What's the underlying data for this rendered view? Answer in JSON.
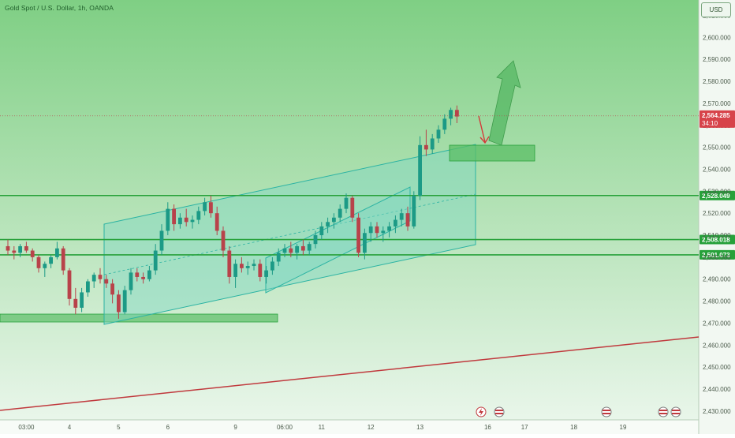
{
  "header": {
    "title": "Gold Spot / U.S. Dollar, 1h, OANDA",
    "currency_label": "USD"
  },
  "colors": {
    "background_top": "#7fcf84",
    "background_bottom": "#e9f6ea",
    "up_candle": "#1c9a86",
    "down_candle": "#b8424a",
    "channel_fill": "#7fd8c4",
    "channel_line": "#2bb3a3",
    "level_line": "#27a13a",
    "zone_fill": "#5bbd66",
    "trendline": "#c0393d",
    "forecast_arrow": "#5dbb6a",
    "pullback_arrow": "#d43a3a",
    "price_label_bg": "#27a13a",
    "last_price_bg": "#d7434a"
  },
  "chart_data": {
    "type": "candlestick",
    "title": "Gold Spot / U.S. Dollar, 1h, OANDA",
    "ylim": [
      2426,
      2617
    ],
    "y_ticks": [
      "2,430.000",
      "2,440.000",
      "2,450.000",
      "2,460.000",
      "2,470.000",
      "2,480.000",
      "2,490.000",
      "2,500.000",
      "2,510.000",
      "2,520.000",
      "2,530.000",
      "2,540.000",
      "2,550.000",
      "2,560.000",
      "2,570.000",
      "2,580.000",
      "2,590.000",
      "2,600.000",
      "2,610.000"
    ],
    "y_tick_values": [
      2430,
      2440,
      2450,
      2460,
      2470,
      2480,
      2490,
      2500,
      2510,
      2520,
      2530,
      2540,
      2550,
      2560,
      2570,
      2580,
      2590,
      2600,
      2610
    ],
    "x_ticks": [
      "03:00",
      "4",
      "5",
      "6",
      "9",
      "06:00",
      "11",
      "12",
      "13",
      "16",
      "17",
      "18",
      "19"
    ],
    "x_tick_bar_index": [
      3,
      10,
      18,
      26,
      37,
      45,
      51,
      59,
      67,
      78,
      84,
      92,
      100
    ],
    "price_levels": [
      {
        "label": "2,528.049",
        "value": 2528.049
      },
      {
        "label": "2,508.018",
        "value": 2508.018
      },
      {
        "label": "2,501.073",
        "value": 2501.073
      }
    ],
    "last_price": {
      "label": "2,564.285",
      "value": 2564.285,
      "countdown": "34:10"
    },
    "candles": [
      [
        2505,
        2508,
        2501,
        2503
      ],
      [
        2503,
        2505,
        2499,
        2502
      ],
      [
        2502,
        2506,
        2500,
        2505
      ],
      [
        2505,
        2507,
        2502,
        2503
      ],
      [
        2503,
        2504,
        2498,
        2500
      ],
      [
        2500,
        2501,
        2493,
        2495
      ],
      [
        2495,
        2498,
        2491,
        2497
      ],
      [
        2497,
        2501,
        2495,
        2500
      ],
      [
        2500,
        2507,
        2499,
        2504
      ],
      [
        2504,
        2505,
        2492,
        2494
      ],
      [
        2494,
        2495,
        2478,
        2481
      ],
      [
        2481,
        2486,
        2474,
        2477
      ],
      [
        2477,
        2486,
        2475,
        2484
      ],
      [
        2484,
        2490,
        2482,
        2489
      ],
      [
        2489,
        2493,
        2486,
        2492
      ],
      [
        2492,
        2495,
        2488,
        2490
      ],
      [
        2490,
        2492,
        2486,
        2488
      ],
      [
        2488,
        2490,
        2479,
        2483
      ],
      [
        2483,
        2485,
        2472,
        2475
      ],
      [
        2475,
        2487,
        2474,
        2485
      ],
      [
        2485,
        2495,
        2483,
        2493
      ],
      [
        2493,
        2495,
        2489,
        2491
      ],
      [
        2491,
        2493,
        2488,
        2490
      ],
      [
        2490,
        2496,
        2489,
        2494
      ],
      [
        2494,
        2506,
        2492,
        2503
      ],
      [
        2503,
        2515,
        2501,
        2512
      ],
      [
        2512,
        2525,
        2510,
        2522
      ],
      [
        2522,
        2524,
        2512,
        2515
      ],
      [
        2515,
        2520,
        2513,
        2518
      ],
      [
        2518,
        2522,
        2514,
        2516
      ],
      [
        2516,
        2519,
        2513,
        2517
      ],
      [
        2517,
        2523,
        2515,
        2521
      ],
      [
        2521,
        2527,
        2519,
        2525
      ],
      [
        2525,
        2528,
        2518,
        2520
      ],
      [
        2520,
        2523,
        2510,
        2512
      ],
      [
        2512,
        2514,
        2500,
        2503
      ],
      [
        2503,
        2505,
        2488,
        2491
      ],
      [
        2491,
        2499,
        2486,
        2497
      ],
      [
        2497,
        2500,
        2493,
        2495
      ],
      [
        2495,
        2498,
        2492,
        2496
      ],
      [
        2496,
        2499,
        2494,
        2497
      ],
      [
        2497,
        2499,
        2489,
        2491
      ],
      [
        2491,
        2496,
        2488,
        2494
      ],
      [
        2494,
        2500,
        2492,
        2498
      ],
      [
        2498,
        2504,
        2496,
        2502
      ],
      [
        2502,
        2506,
        2500,
        2504
      ],
      [
        2504,
        2507,
        2500,
        2502
      ],
      [
        2502,
        2506,
        2499,
        2505
      ],
      [
        2505,
        2508,
        2501,
        2503
      ],
      [
        2503,
        2507,
        2501,
        2506
      ],
      [
        2506,
        2512,
        2504,
        2510
      ],
      [
        2510,
        2516,
        2508,
        2514
      ],
      [
        2514,
        2518,
        2511,
        2516
      ],
      [
        2516,
        2520,
        2513,
        2518
      ],
      [
        2518,
        2524,
        2516,
        2522
      ],
      [
        2522,
        2529,
        2520,
        2527
      ],
      [
        2527,
        2528,
        2516,
        2518
      ],
      [
        2518,
        2520,
        2500,
        2502
      ],
      [
        2502,
        2513,
        2499,
        2511
      ],
      [
        2511,
        2516,
        2507,
        2514
      ],
      [
        2514,
        2516,
        2509,
        2511
      ],
      [
        2511,
        2514,
        2507,
        2512
      ],
      [
        2512,
        2516,
        2509,
        2514
      ],
      [
        2514,
        2519,
        2511,
        2517
      ],
      [
        2517,
        2522,
        2514,
        2520
      ],
      [
        2520,
        2523,
        2512,
        2514
      ],
      [
        2514,
        2530,
        2513,
        2528
      ],
      [
        2528,
        2555,
        2526,
        2551
      ],
      [
        2551,
        2558,
        2546,
        2549
      ],
      [
        2549,
        2556,
        2547,
        2554
      ],
      [
        2554,
        2560,
        2552,
        2558
      ],
      [
        2558,
        2565,
        2556,
        2563
      ],
      [
        2563,
        2568,
        2560,
        2567
      ],
      [
        2567,
        2569,
        2561,
        2564
      ]
    ]
  }
}
